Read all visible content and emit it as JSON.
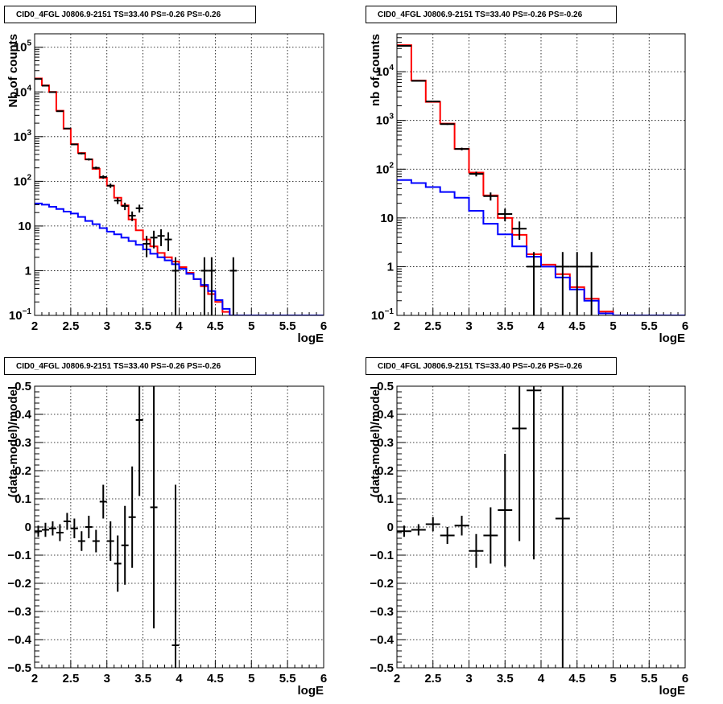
{
  "chart_data": [
    {
      "type": "step-histogram",
      "title": "CID0_4FGL J0806.9-2151 TS=33.40 PS=-0.26 PS=-0.26",
      "xlabel": "logE",
      "ylabel": "Nb of counts",
      "xlim": [
        2,
        6
      ],
      "ylim": [
        0.1,
        200000
      ],
      "yscale": "log",
      "grid": true,
      "xticks": [
        "2",
        "2.5",
        "3",
        "3.5",
        "4",
        "4.5",
        "5",
        "5.5",
        "6"
      ],
      "yticks": [
        "10^-1",
        "1",
        "10",
        "10^2",
        "10^3",
        "10^4",
        "10^5"
      ],
      "bin_edges": [
        2.0,
        2.1,
        2.2,
        2.3,
        2.4,
        2.5,
        2.6,
        2.7,
        2.8,
        2.9,
        3.0,
        3.1,
        3.2,
        3.3,
        3.4,
        3.5,
        3.6,
        3.7,
        3.8,
        3.9,
        4.0,
        4.1,
        4.2,
        4.3,
        4.4,
        4.5,
        4.6,
        4.7,
        4.8,
        4.9,
        5.0,
        5.1,
        5.2,
        5.3,
        5.4,
        5.5,
        5.6,
        5.7,
        5.8,
        5.9,
        6.0
      ],
      "series": [
        {
          "color": "#ff0000",
          "values": [
            20000,
            14000,
            10000,
            3800,
            1500,
            680,
            430,
            310,
            190,
            120,
            80,
            43,
            29,
            14,
            8,
            5,
            3.5,
            2.5,
            2.0,
            1.6,
            1.2,
            0.9,
            0.65,
            0.45,
            0.3,
            0.2,
            0.12,
            0.1,
            0.1,
            0.1,
            0.1,
            0.1,
            0.1,
            0.1,
            0.1,
            0.1,
            0.1,
            0.1,
            0.1,
            0.1
          ]
        },
        {
          "color": "#0000ff",
          "values": [
            32,
            30,
            27,
            24,
            21,
            19,
            16,
            13,
            11,
            9,
            7.5,
            6.5,
            5.5,
            4.6,
            3.8,
            3.0,
            2.4,
            2.0,
            1.7,
            1.4,
            1.1,
            0.85,
            0.65,
            0.48,
            0.35,
            0.22,
            0.14,
            0.1,
            0.1,
            0.1,
            0.1,
            0.1,
            0.1,
            0.1,
            0.1,
            0.1,
            0.1,
            0.1,
            0.1,
            0.1
          ]
        }
      ],
      "points": {
        "color": "#000000",
        "x": [
          2.05,
          2.15,
          2.25,
          2.35,
          2.45,
          2.55,
          2.65,
          2.75,
          2.85,
          2.95,
          3.05,
          3.15,
          3.25,
          3.35,
          3.45,
          3.55,
          3.65,
          3.75,
          3.85,
          3.95,
          4.35,
          4.45,
          4.75
        ],
        "y": [
          19500,
          13800,
          9900,
          3700,
          1520,
          670,
          420,
          310,
          200,
          125,
          80,
          37,
          28,
          17,
          25,
          4,
          5.5,
          6.0,
          5.0,
          1,
          1,
          1,
          1
        ],
        "xerr": 0.05
      }
    },
    {
      "type": "step-histogram",
      "title": "CID0_4FGL J0806.9-2151 TS=33.40 PS=-0.26 PS=-0.26",
      "xlabel": "logE",
      "ylabel": "nb of counts",
      "xlim": [
        2,
        6
      ],
      "ylim": [
        0.1,
        60000
      ],
      "yscale": "log",
      "grid": true,
      "xticks": [
        "2",
        "2.5",
        "3",
        "3.5",
        "4",
        "4.5",
        "5",
        "5.5",
        "6"
      ],
      "yticks": [
        "10^-1",
        "1",
        "10",
        "10^2",
        "10^3",
        "10^4"
      ],
      "bin_edges": [
        2.0,
        2.2,
        2.4,
        2.6,
        2.8,
        3.0,
        3.2,
        3.4,
        3.6,
        3.8,
        4.0,
        4.2,
        4.4,
        4.6,
        4.8,
        5.0,
        5.2,
        5.4,
        5.6,
        5.8,
        6.0
      ],
      "series": [
        {
          "color": "#ff0000",
          "values": [
            35000,
            6600,
            2400,
            860,
            260,
            85,
            29,
            10,
            4.5,
            1.8,
            1.1,
            0.7,
            0.38,
            0.22,
            0.12,
            0.1,
            0.1,
            0.1,
            0.1,
            0.1
          ]
        },
        {
          "color": "#0000ff",
          "values": [
            60,
            52,
            43,
            34,
            26,
            14,
            7.6,
            4.6,
            2.6,
            1.6,
            1.0,
            0.6,
            0.34,
            0.2,
            0.11,
            0.1,
            0.1,
            0.1,
            0.1,
            0.1
          ]
        }
      ],
      "points": {
        "color": "#000000",
        "x": [
          2.1,
          2.3,
          2.5,
          2.7,
          2.9,
          3.1,
          3.3,
          3.5,
          3.7,
          3.9,
          4.3,
          4.5,
          4.7
        ],
        "y": [
          34000,
          6500,
          2450,
          840,
          260,
          80,
          28,
          12,
          6,
          1,
          1,
          1,
          1
        ],
        "xerr": 0.1
      }
    },
    {
      "type": "errorbar",
      "title": "CID0_4FGL J0806.9-2151 TS=33.40 PS=-0.26 PS=-0.26",
      "xlabel": "logE",
      "ylabel": "(data-model)/model",
      "xlim": [
        2,
        6
      ],
      "ylim": [
        -0.5,
        0.5
      ],
      "yscale": "linear",
      "grid": true,
      "xticks": [
        "2",
        "2.5",
        "3",
        "3.5",
        "4",
        "4.5",
        "5",
        "5.5",
        "6"
      ],
      "yticks": [
        "-0.5",
        "-0.4",
        "-0.3",
        "-0.2",
        "-0.1",
        "0",
        "0.1",
        "0.2",
        "0.3",
        "0.4",
        "0.5"
      ],
      "points": {
        "color": "#000000",
        "x": [
          2.05,
          2.15,
          2.25,
          2.35,
          2.45,
          2.55,
          2.65,
          2.75,
          2.85,
          2.95,
          3.05,
          3.15,
          3.25,
          3.35,
          3.45,
          3.65,
          3.95
        ],
        "y": [
          -0.015,
          -0.01,
          -0.005,
          -0.02,
          0.02,
          -0.005,
          -0.05,
          0.0,
          -0.05,
          0.09,
          -0.05,
          -0.13,
          -0.065,
          0.035,
          0.38,
          0.07,
          -0.42
        ],
        "yerr": [
          0.02,
          0.025,
          0.025,
          0.03,
          0.03,
          0.035,
          0.035,
          0.04,
          0.04,
          0.06,
          0.07,
          0.1,
          0.14,
          0.18,
          0.27,
          0.43,
          0.57
        ],
        "xerr": 0.05
      }
    },
    {
      "type": "errorbar",
      "title": "CID0_4FGL J0806.9-2151 TS=33.40 PS=-0.26 PS=-0.26",
      "xlabel": "logE",
      "ylabel": "(data-model)/model",
      "xlim": [
        2,
        6
      ],
      "ylim": [
        -0.5,
        0.5
      ],
      "yscale": "linear",
      "grid": true,
      "xticks": [
        "2",
        "2.5",
        "3",
        "3.5",
        "4",
        "4.5",
        "5",
        "5.5",
        "6"
      ],
      "yticks": [
        "-0.5",
        "-0.4",
        "-0.3",
        "-0.2",
        "-0.1",
        "0",
        "0.1",
        "0.2",
        "0.3",
        "0.4",
        "0.5"
      ],
      "points": {
        "color": "#000000",
        "x": [
          2.1,
          2.3,
          2.5,
          2.7,
          2.9,
          3.1,
          3.3,
          3.5,
          3.7,
          3.9,
          4.3
        ],
        "y": [
          -0.015,
          -0.01,
          0.01,
          -0.03,
          0.005,
          -0.085,
          -0.03,
          0.06,
          0.35,
          0.485,
          0.03
        ],
        "yerr": [
          0.02,
          0.02,
          0.025,
          0.03,
          0.035,
          0.06,
          0.1,
          0.2,
          0.4,
          0.6,
          0.7
        ],
        "xerr": 0.1
      }
    }
  ]
}
